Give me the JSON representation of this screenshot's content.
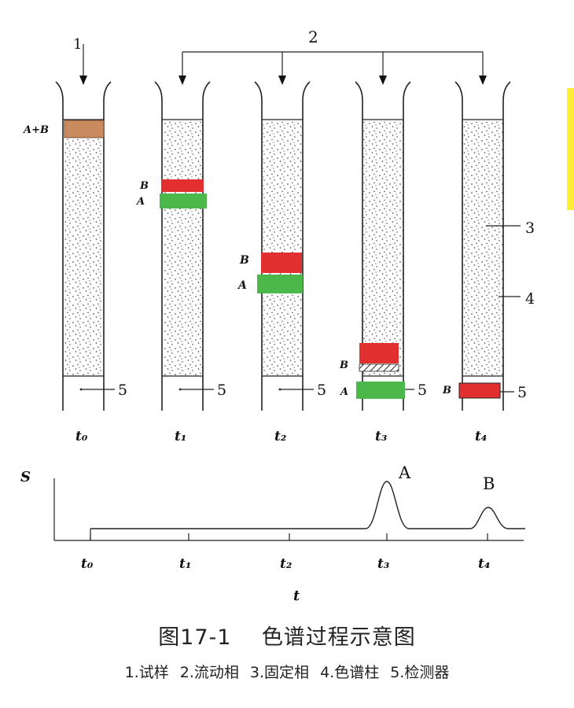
{
  "labels": {
    "sample_arrow": "1",
    "mobile_phase": "2",
    "stationary_phase_callout": "3",
    "column_callout": "4",
    "detector_callout": "5",
    "mix_band": "A+B",
    "band_a": "A",
    "band_b": "B",
    "signal_axis": "S",
    "time_axis": "t",
    "peak_a": "A",
    "peak_b": "B"
  },
  "columns": [
    {
      "time_label": "t₀"
    },
    {
      "time_label": "t₁"
    },
    {
      "time_label": "t₂"
    },
    {
      "time_label": "t₃"
    },
    {
      "time_label": "t₄"
    }
  ],
  "axis_ticks": [
    "t₀",
    "t₁",
    "t₂",
    "t₃",
    "t₄"
  ],
  "colors": {
    "band_a": "#4cb84c",
    "band_b": "#e23030",
    "band_mix": "#c98a60",
    "highlight": "#ffee33"
  },
  "caption": {
    "figure_number": "图17-1",
    "title": "色谱过程示意图"
  },
  "legend": [
    "1.试样",
    "2.流动相",
    "3.固定相",
    "4.色谱柱",
    "5.检测器"
  ]
}
